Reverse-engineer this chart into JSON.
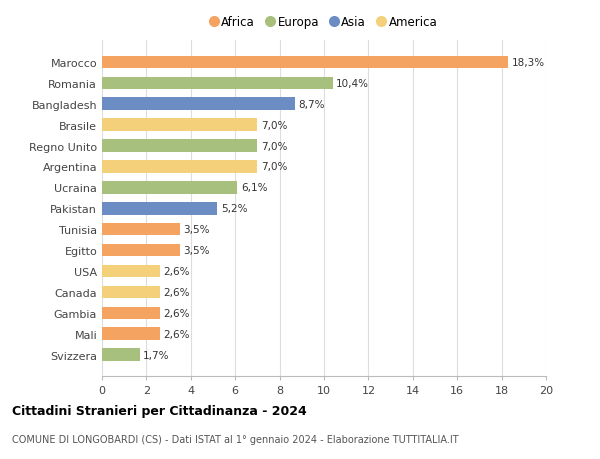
{
  "categories": [
    "Marocco",
    "Romania",
    "Bangladesh",
    "Brasile",
    "Regno Unito",
    "Argentina",
    "Ucraina",
    "Pakistan",
    "Tunisia",
    "Egitto",
    "USA",
    "Canada",
    "Gambia",
    "Mali",
    "Svizzera"
  ],
  "values": [
    18.3,
    10.4,
    8.7,
    7.0,
    7.0,
    7.0,
    6.1,
    5.2,
    3.5,
    3.5,
    2.6,
    2.6,
    2.6,
    2.6,
    1.7
  ],
  "labels": [
    "18,3%",
    "10,4%",
    "8,7%",
    "7,0%",
    "7,0%",
    "7,0%",
    "6,1%",
    "5,2%",
    "3,5%",
    "3,5%",
    "2,6%",
    "2,6%",
    "2,6%",
    "2,6%",
    "1,7%"
  ],
  "colors": [
    "#F4A460",
    "#A8C07E",
    "#6B8DC4",
    "#F5D07A",
    "#A8C07E",
    "#F5D07A",
    "#A8C07E",
    "#6B8DC4",
    "#F4A460",
    "#F4A460",
    "#F5D07A",
    "#F5D07A",
    "#F4A460",
    "#F4A460",
    "#A8C07E"
  ],
  "legend_labels": [
    "Africa",
    "Europa",
    "Asia",
    "America"
  ],
  "legend_colors": [
    "#F4A460",
    "#A8C07E",
    "#6B8DC4",
    "#F5D07A"
  ],
  "title": "Cittadini Stranieri per Cittadinanza - 2024",
  "subtitle": "COMUNE DI LONGOBARDI (CS) - Dati ISTAT al 1° gennaio 2024 - Elaborazione TUTTITALIA.IT",
  "xlim": [
    0,
    20
  ],
  "xticks": [
    0,
    2,
    4,
    6,
    8,
    10,
    12,
    14,
    16,
    18,
    20
  ],
  "background_color": "#ffffff",
  "grid_color": "#dddddd"
}
